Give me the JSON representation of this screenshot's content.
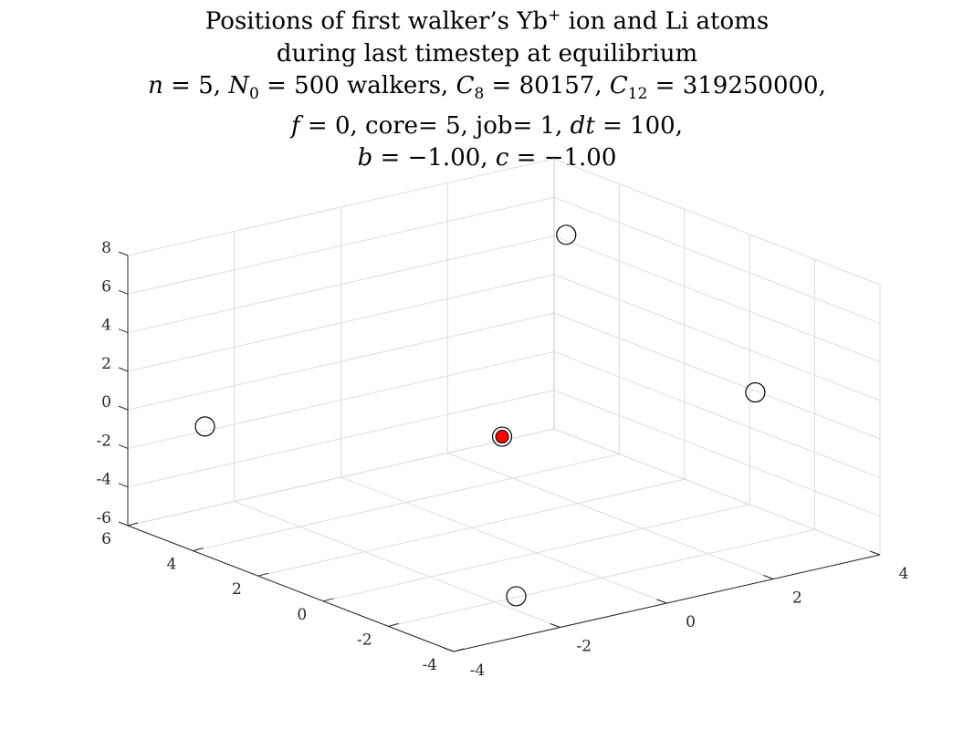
{
  "title": {
    "line1_a": "Positions of first walker’s Yb",
    "line1_sup": "+",
    "line1_b": " ion and Li atoms",
    "line2": "during last timestep at equilibrium",
    "n_sym": "n",
    "n_val": " = 5, ",
    "N0_sym": "N",
    "N0_sub": "0",
    "N0_val": " = 500 walkers, ",
    "C8_sym": "C",
    "C8_sub": "8",
    "C8_val": " = 80157, ",
    "C12_sym": "C",
    "C12_sub": "12",
    "C12_val": " = 319250000,",
    "f_sym": "f",
    "f_val": " = 0, core= 5, job= 1, ",
    "dt_sym": "dt",
    "dt_val": " = 100,",
    "b_sym": "b",
    "b_val": " = −1.00, ",
    "c_sym": "c",
    "c_val": " = −1.00"
  },
  "chart_data": {
    "type": "scatter",
    "projection": "3d",
    "grid": true,
    "xlim": [
      -4,
      4
    ],
    "ylim": [
      -4,
      6
    ],
    "zlim": [
      -6,
      8
    ],
    "x_ticks": [
      -4,
      -2,
      0,
      2,
      4
    ],
    "y_ticks": [
      -4,
      -2,
      0,
      2,
      4,
      6
    ],
    "z_ticks": [
      -6,
      -4,
      -2,
      0,
      2,
      4,
      6,
      8
    ],
    "x_tick_labels": [
      "-4",
      "-2",
      "0",
      "2",
      "4"
    ],
    "y_tick_labels": [
      "-4",
      "-2",
      "0",
      "2",
      "4",
      "6"
    ],
    "z_tick_labels": [
      "-6",
      "-4",
      "-2",
      "0",
      "2",
      "4",
      "6",
      "8"
    ],
    "series": [
      {
        "marker": "circle-filled",
        "color": "#ff0000",
        "edge_color": "#000000",
        "points": [
          {
            "x": -0.59,
            "y": 0.09,
            "z": 0.33
          }
        ]
      },
      {
        "marker": "circle-open",
        "color": "#000000",
        "points": [
          {
            "x": -3.72,
            "y": 4.09,
            "z": 0.21
          },
          {
            "x": 2.59,
            "y": -2.48,
            "z": 2.31
          },
          {
            "x": 2.98,
            "y": 3.96,
            "z": 6.03
          },
          {
            "x": -2.16,
            "y": -2.91,
            "z": -5.0
          }
        ]
      }
    ]
  }
}
